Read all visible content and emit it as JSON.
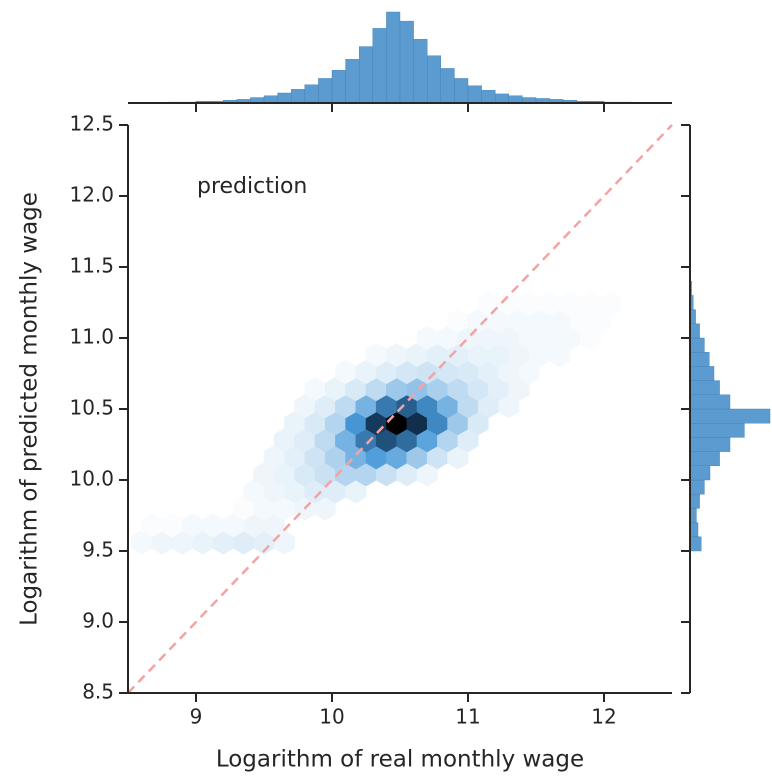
{
  "chart_data": {
    "type": "hexbin",
    "xlabel": "Logarithm of real monthly wage",
    "ylabel": "Logarithm of predicted monthly wage",
    "annotation": "prediction",
    "xlim": [
      8.5,
      12.5
    ],
    "ylim": [
      8.5,
      12.5
    ],
    "xticks": [
      9,
      10,
      11,
      12
    ],
    "yticks": [
      8.5,
      {
        "value": 9,
        "label": "9.0"
      },
      9.5,
      {
        "value": 10,
        "label": "10.0"
      },
      10.5,
      {
        "value": 11,
        "label": "11.0"
      },
      11.5,
      {
        "value": 12,
        "label": "12.0"
      },
      12.5
    ],
    "cmap": [
      "#ffffff",
      "#4a9ad8",
      "#163f66",
      "#000000"
    ],
    "identity_line": {
      "color": "#f4a3a3",
      "style": "dashed"
    },
    "rows": [
      {
        "y": 9.56,
        "x": [
          8.6,
          8.75,
          8.9,
          9.05,
          9.2,
          9.35,
          9.5,
          9.65
        ],
        "counts": [
          2,
          3,
          3,
          4,
          5,
          6,
          5,
          3
        ]
      },
      {
        "y": 9.68,
        "x": [
          8.675,
          8.825,
          8.975,
          9.125,
          9.275,
          9.425,
          9.575
        ],
        "counts": [
          1,
          1,
          2,
          2,
          2,
          3,
          3
        ]
      },
      {
        "y": 9.8,
        "x": [
          9.35,
          9.5,
          9.65,
          9.8,
          9.95
        ],
        "counts": [
          1,
          2,
          2,
          3,
          3
        ]
      },
      {
        "y": 9.92,
        "x": [
          9.425,
          9.575,
          9.725,
          9.875,
          10.025,
          10.175
        ],
        "counts": [
          2,
          3,
          4,
          6,
          6,
          4
        ]
      },
      {
        "y": 10.04,
        "x": [
          9.5,
          9.65,
          9.8,
          9.95,
          10.1,
          10.25,
          10.4,
          10.55,
          10.7
        ],
        "counts": [
          3,
          4,
          7,
          10,
          14,
          14,
          10,
          6,
          3
        ]
      },
      {
        "y": 10.16,
        "x": [
          9.575,
          9.725,
          9.875,
          10.025,
          10.175,
          10.325,
          10.475,
          10.625,
          10.775,
          10.925
        ],
        "counts": [
          3,
          5,
          9,
          15,
          25,
          32,
          28,
          18,
          9,
          4
        ]
      },
      {
        "y": 10.28,
        "x": [
          9.65,
          9.8,
          9.95,
          10.1,
          10.25,
          10.4,
          10.55,
          10.7,
          10.85,
          11.0
        ],
        "counts": [
          4,
          6,
          12,
          25,
          45,
          60,
          50,
          30,
          14,
          6
        ]
      },
      {
        "y": 10.4,
        "x": [
          9.725,
          9.875,
          10.025,
          10.175,
          10.325,
          10.475,
          10.625,
          10.775,
          10.925,
          11.075
        ],
        "counts": [
          4,
          7,
          14,
          35,
          70,
          100,
          75,
          40,
          18,
          7
        ]
      },
      {
        "y": 10.52,
        "x": [
          9.8,
          9.95,
          10.1,
          10.25,
          10.4,
          10.55,
          10.7,
          10.85,
          11.0,
          11.15,
          11.3
        ],
        "counts": [
          3,
          6,
          12,
          25,
          45,
          55,
          40,
          25,
          12,
          6,
          3
        ]
      },
      {
        "y": 10.64,
        "x": [
          9.875,
          10.025,
          10.175,
          10.325,
          10.475,
          10.625,
          10.775,
          10.925,
          11.075,
          11.225,
          11.375
        ],
        "counts": [
          2,
          4,
          7,
          12,
          18,
          20,
          16,
          12,
          8,
          5,
          3
        ]
      },
      {
        "y": 10.76,
        "x": [
          10.1,
          10.25,
          10.4,
          10.55,
          10.7,
          10.85,
          11.0,
          11.15,
          11.3,
          11.45
        ],
        "counts": [
          2,
          4,
          6,
          8,
          9,
          8,
          7,
          5,
          3,
          2
        ]
      },
      {
        "y": 10.88,
        "x": [
          10.325,
          10.475,
          10.625,
          10.775,
          10.925,
          11.075,
          11.225,
          11.375,
          11.525,
          11.675
        ],
        "counts": [
          2,
          3,
          4,
          5,
          5,
          4,
          4,
          3,
          2,
          2
        ]
      },
      {
        "y": 11.0,
        "x": [
          10.7,
          10.85,
          11.0,
          11.15,
          11.3,
          11.45,
          11.6,
          11.75,
          11.9
        ],
        "counts": [
          2,
          2,
          3,
          3,
          3,
          2,
          2,
          2,
          1
        ]
      },
      {
        "y": 11.12,
        "x": [
          10.925,
          11.075,
          11.225,
          11.375,
          11.525,
          11.675,
          11.825,
          11.975
        ],
        "counts": [
          1,
          2,
          2,
          2,
          2,
          2,
          1,
          1
        ]
      },
      {
        "y": 11.24,
        "x": [
          11.15,
          11.3,
          11.45,
          11.6,
          11.75,
          11.9,
          12.05
        ],
        "counts": [
          1,
          1,
          1,
          1,
          1,
          1,
          1
        ]
      }
    ],
    "marginal_x": {
      "color": "#5b9bd0",
      "bins": [
        8.5,
        8.6,
        8.7,
        8.8,
        8.9,
        9.0,
        9.1,
        9.2,
        9.3,
        9.4,
        9.5,
        9.6,
        9.7,
        9.8,
        9.9,
        10.0,
        10.1,
        10.2,
        10.3,
        10.4,
        10.5,
        10.6,
        10.7,
        10.8,
        10.9,
        11.0,
        11.1,
        11.2,
        11.3,
        11.4,
        11.5,
        11.6,
        11.7,
        11.8,
        11.9,
        12.0,
        12.1,
        12.2,
        12.3,
        12.4,
        12.5
      ],
      "counts": [
        0,
        0,
        0.5,
        1,
        1,
        2,
        2,
        3,
        4,
        6,
        8,
        11,
        15,
        20,
        27,
        36,
        48,
        62,
        82,
        100,
        90,
        70,
        52,
        38,
        27,
        19,
        14,
        10,
        8,
        6,
        5,
        4,
        3,
        2,
        2,
        1,
        1,
        0.5,
        0,
        0
      ]
    },
    "marginal_y": {
      "color": "#5b9bd0",
      "bins": [
        9.4,
        9.5,
        9.6,
        9.7,
        9.8,
        9.9,
        10.0,
        10.1,
        10.2,
        10.3,
        10.4,
        10.5,
        10.6,
        10.7,
        10.8,
        10.9,
        11.0,
        11.1,
        11.2,
        11.3,
        11.4,
        11.5
      ],
      "counts": [
        0,
        14,
        10,
        8,
        12,
        18,
        25,
        37,
        50,
        68,
        100,
        50,
        37,
        30,
        24,
        18,
        12,
        7,
        4,
        2,
        1
      ]
    }
  }
}
